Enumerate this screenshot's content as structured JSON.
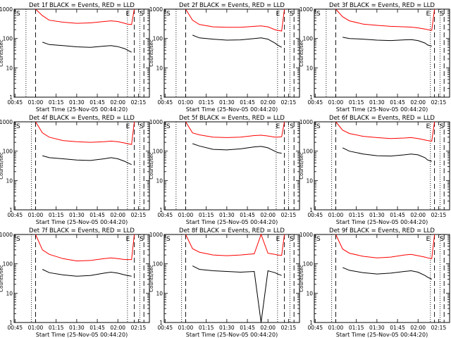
{
  "figure": {
    "y_axis_label": "Counts/sec",
    "x_axis_label": "Start Time (25-Nov-05 00:44:20)",
    "x_tick_labels": [
      "00:45",
      "01:00",
      "01:15",
      "01:30",
      "01:45",
      "02:00",
      "02:15"
    ],
    "y_tick_labels": [
      "1",
      "10",
      "100",
      "1000"
    ],
    "colors": {
      "events": "#000000",
      "lld": "#ff0000",
      "axes": "#000000",
      "background": "#ffffff"
    }
  },
  "chart_data": [
    {
      "type": "line",
      "title": "Det 1f BLACK = Events, RED = LLD",
      "xlabel": "Start Time (25-Nov-05 00:44:20)",
      "ylabel": "Counts/sec",
      "xlim": [
        "00:44:20",
        "02:23:00"
      ],
      "ylim": [
        1,
        1000
      ],
      "y_scale": "log",
      "grid": false,
      "markers": {
        "s_label": "S",
        "e_label": "E",
        "dotted": [
          "00:53",
          "02:07",
          "02:16"
        ],
        "dashed": [
          "01:00",
          "02:12",
          "02:19"
        ]
      },
      "x": [
        "01:00",
        "01:05",
        "01:10",
        "01:20",
        "01:30",
        "01:40",
        "01:50",
        "01:55",
        "02:00",
        "02:05",
        "02:07",
        "02:10",
        "02:12"
      ],
      "series": [
        {
          "values": [
            null,
            75,
            62,
            57,
            52,
            50,
            55,
            57,
            53,
            45,
            40,
            34,
            null
          ]
        },
        {
          "values": [
            1000,
            600,
            420,
            360,
            330,
            340,
            380,
            400,
            380,
            330,
            310,
            300,
            1000
          ]
        }
      ]
    },
    {
      "type": "line",
      "title": "Det 2f BLACK = Events, RED = LLD",
      "xlabel": "Start Time (25-Nov-05 00:44:20)",
      "ylabel": "Counts/sec",
      "xlim": [
        "00:44:20",
        "02:23:00"
      ],
      "ylim": [
        1,
        1000
      ],
      "y_scale": "log",
      "grid": false,
      "markers": {
        "s_label": "S",
        "e_label": "E",
        "dotted": [
          "00:53",
          "02:07",
          "02:16"
        ],
        "dashed": [
          "01:00",
          "02:12",
          "02:19"
        ]
      },
      "x": [
        "01:00",
        "01:05",
        "01:10",
        "01:20",
        "01:30",
        "01:40",
        "01:50",
        "01:55",
        "02:00",
        "02:05",
        "02:07",
        "02:10",
        "02:12"
      ],
      "series": [
        {
          "values": [
            null,
            130,
            105,
            95,
            88,
            90,
            100,
            105,
            95,
            70,
            60,
            50,
            null
          ]
        },
        {
          "values": [
            1000,
            420,
            300,
            250,
            240,
            240,
            260,
            270,
            250,
            200,
            190,
            180,
            1000
          ]
        }
      ]
    },
    {
      "type": "line",
      "title": "Det 3f BLACK = Events, RED = LLD",
      "xlabel": "Start Time (25-Nov-05 00:44:20)",
      "ylabel": "Counts/sec",
      "xlim": [
        "00:44:20",
        "02:23:00"
      ],
      "ylim": [
        1,
        1000
      ],
      "y_scale": "log",
      "grid": false,
      "markers": {
        "s_label": "S",
        "e_label": "E",
        "dotted": [
          "00:53",
          "02:09",
          "02:16"
        ],
        "dashed": [
          "01:00",
          "02:12",
          "02:19"
        ]
      },
      "x": [
        "01:00",
        "01:05",
        "01:10",
        "01:20",
        "01:30",
        "01:40",
        "01:50",
        "01:55",
        "02:00",
        "02:05",
        "02:07",
        "02:10",
        "02:12"
      ],
      "series": [
        {
          "values": [
            null,
            110,
            100,
            95,
            88,
            85,
            90,
            92,
            85,
            70,
            60,
            55,
            null
          ]
        },
        {
          "values": [
            1000,
            550,
            400,
            310,
            280,
            260,
            250,
            245,
            230,
            210,
            200,
            190,
            1000
          ]
        }
      ]
    },
    {
      "type": "line",
      "title": "Det 4f BLACK = Events, RED = LLD",
      "xlabel": "Start Time (25-Nov-05 00:44:20)",
      "ylabel": "Counts/sec",
      "xlim": [
        "00:44:20",
        "02:23:00"
      ],
      "ylim": [
        1,
        1000
      ],
      "y_scale": "log",
      "grid": false,
      "markers": {
        "s_label": "S",
        "e_label": "E",
        "dotted": [
          "00:57",
          "02:07",
          "02:16"
        ],
        "dashed": [
          "01:00",
          "02:12",
          "02:19"
        ]
      },
      "x": [
        "01:00",
        "01:05",
        "01:10",
        "01:20",
        "01:30",
        "01:40",
        "01:50",
        "01:55",
        "02:00",
        "02:05",
        "02:07",
        "02:10",
        "02:12"
      ],
      "series": [
        {
          "values": [
            null,
            70,
            60,
            55,
            50,
            48,
            55,
            60,
            55,
            45,
            40,
            35,
            null
          ]
        },
        {
          "values": [
            1000,
            420,
            300,
            230,
            210,
            200,
            210,
            220,
            210,
            190,
            180,
            170,
            1000
          ]
        }
      ]
    },
    {
      "type": "line",
      "title": "Det 5f BLACK = Events, RED = LLD",
      "xlabel": "Start Time (25-Nov-05 00:44:20)",
      "ylabel": "Counts/sec",
      "xlim": [
        "00:44:20",
        "02:23:00"
      ],
      "ylim": [
        1,
        1000
      ],
      "y_scale": "log",
      "grid": false,
      "markers": {
        "s_label": "S",
        "e_label": "E",
        "dotted": [
          "00:53",
          "02:06",
          "02:15"
        ],
        "dashed": [
          "01:00",
          "02:12",
          "02:19"
        ]
      },
      "x": [
        "01:00",
        "01:05",
        "01:10",
        "01:20",
        "01:30",
        "01:40",
        "01:50",
        "01:55",
        "02:00",
        "02:05",
        "02:07",
        "02:10",
        "02:12"
      ],
      "series": [
        {
          "values": [
            null,
            180,
            150,
            115,
            110,
            120,
            140,
            145,
            130,
            100,
            90,
            85,
            null
          ]
        },
        {
          "values": [
            1000,
            420,
            360,
            300,
            290,
            300,
            340,
            350,
            330,
            300,
            300,
            310,
            1000
          ]
        }
      ]
    },
    {
      "type": "line",
      "title": "Det 6f BLACK = Events, RED = LLD",
      "xlabel": "Start Time (25-Nov-05 00:44:20)",
      "ylabel": "Counts/sec",
      "xlim": [
        "00:44:20",
        "02:23:00"
      ],
      "ylim": [
        1,
        1000
      ],
      "y_scale": "log",
      "grid": false,
      "markers": {
        "s_label": "S",
        "e_label": "E",
        "dotted": [
          "00:57",
          "02:09",
          "02:16"
        ],
        "dashed": [
          "01:00",
          "02:12",
          "02:19"
        ]
      },
      "x": [
        "01:00",
        "01:05",
        "01:10",
        "01:20",
        "01:30",
        "01:40",
        "01:50",
        "01:55",
        "02:00",
        "02:05",
        "02:07",
        "02:10",
        "02:12"
      ],
      "series": [
        {
          "values": [
            null,
            130,
            100,
            80,
            70,
            68,
            75,
            80,
            75,
            60,
            50,
            45,
            null
          ]
        },
        {
          "values": [
            1000,
            520,
            400,
            320,
            290,
            270,
            280,
            290,
            270,
            240,
            230,
            220,
            1000
          ]
        }
      ]
    },
    {
      "type": "line",
      "title": "Det 7f BLACK = Events, RED = LLD",
      "xlabel": "Start Time (25-Nov-05 00:44:20)",
      "ylabel": "Counts/sec",
      "xlim": [
        "00:44:20",
        "02:23:00"
      ],
      "ylim": [
        1,
        1000
      ],
      "y_scale": "log",
      "grid": false,
      "markers": {
        "s_label": "S",
        "e_label": "E",
        "dotted": [
          "00:57",
          "02:07",
          "02:16"
        ],
        "dashed": [
          "01:00",
          "02:12",
          "02:19"
        ]
      },
      "x": [
        "01:00",
        "01:05",
        "01:10",
        "01:20",
        "01:30",
        "01:40",
        "01:50",
        "01:55",
        "02:00",
        "02:05",
        "02:07",
        "02:10",
        "02:12"
      ],
      "series": [
        {
          "values": [
            null,
            65,
            50,
            42,
            38,
            40,
            48,
            52,
            48,
            42,
            40,
            38,
            null
          ]
        },
        {
          "values": [
            1000,
            300,
            210,
            150,
            125,
            130,
            150,
            160,
            150,
            140,
            140,
            140,
            1000
          ]
        }
      ]
    },
    {
      "type": "line",
      "title": "Det 8f BLACK = Events, RED = LLD",
      "xlabel": "Start Time (25-Nov-05 00:44:20)",
      "ylabel": "Counts/sec",
      "xlim": [
        "00:44:20",
        "02:23:00"
      ],
      "ylim": [
        1,
        1000
      ],
      "y_scale": "log",
      "grid": false,
      "markers": {
        "s_label": "S",
        "e_label": "E",
        "dotted": [
          "00:57",
          "02:07",
          "02:16"
        ],
        "dashed": [
          "01:00",
          "02:12",
          "02:19"
        ]
      },
      "x": [
        "01:00",
        "01:05",
        "01:10",
        "01:20",
        "01:30",
        "01:40",
        "01:50",
        "01:55",
        "02:00",
        "02:05",
        "02:07",
        "02:10",
        "02:12"
      ],
      "series": [
        {
          "values": [
            null,
            85,
            65,
            58,
            55,
            52,
            55,
            1,
            58,
            50,
            45,
            40,
            null
          ]
        },
        {
          "values": [
            1000,
            330,
            250,
            200,
            190,
            200,
            220,
            1000,
            230,
            210,
            200,
            195,
            1000
          ]
        }
      ]
    },
    {
      "type": "line",
      "title": "Det 9f BLACK = Events, RED = LLD",
      "xlabel": "Start Time (25-Nov-05 00:44:20)",
      "ylabel": "Counts/sec",
      "xlim": [
        "00:44:20",
        "02:23:00"
      ],
      "ylim": [
        1,
        1000
      ],
      "y_scale": "log",
      "grid": false,
      "markers": {
        "s_label": "S",
        "e_label": "E",
        "dotted": [
          "00:57",
          "02:09",
          "02:16"
        ],
        "dashed": [
          "01:00",
          "02:12",
          "02:19"
        ]
      },
      "x": [
        "01:00",
        "01:05",
        "01:10",
        "01:20",
        "01:30",
        "01:40",
        "01:50",
        "01:55",
        "02:00",
        "02:05",
        "02:07",
        "02:10",
        "02:12"
      ],
      "series": [
        {
          "values": [
            null,
            75,
            60,
            50,
            45,
            48,
            55,
            58,
            52,
            40,
            35,
            30,
            null
          ]
        },
        {
          "values": [
            1000,
            320,
            230,
            180,
            160,
            170,
            200,
            210,
            190,
            170,
            160,
            150,
            1000
          ]
        }
      ]
    }
  ]
}
